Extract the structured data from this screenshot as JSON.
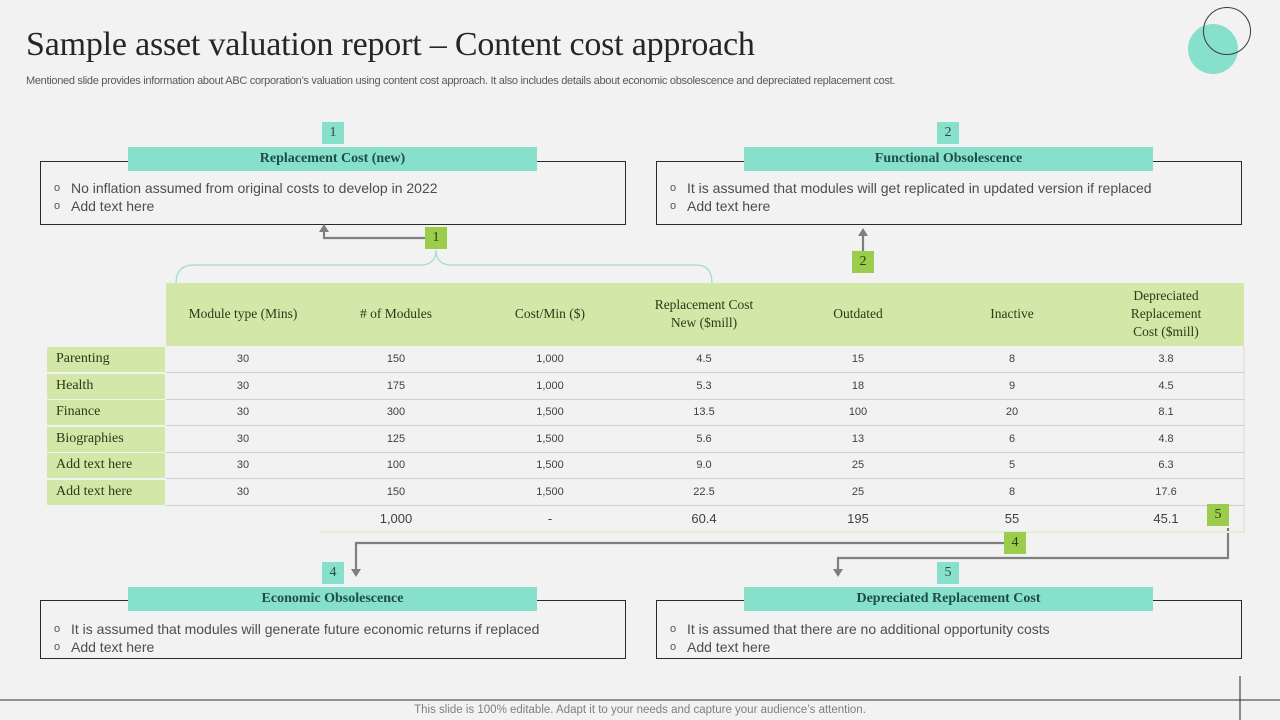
{
  "header": {
    "title": "Sample asset valuation report – Content cost approach",
    "subtitle": "Mentioned slide provides information about ABC corporation’s valuation using content cost approach. It also includes details about economic obsolescence and depreciated replacement cost."
  },
  "boxes": [
    {
      "number": "1",
      "title": "Replacement Cost (new)",
      "bullets": [
        "No inflation assumed from original costs to develop in 2022",
        "Add text here"
      ]
    },
    {
      "number": "2",
      "title": "Functional Obsolescence",
      "bullets": [
        "It is assumed that modules will get replicated in updated version if replaced",
        "Add text here"
      ]
    },
    {
      "number": "4",
      "title": "Economic Obsolescence",
      "bullets": [
        "It is assumed that modules will generate future economic returns if replaced",
        "Add text here"
      ]
    },
    {
      "number": "5",
      "title": "Depreciated Replacement Cost",
      "bullets": [
        "It is assumed that there are no additional opportunity costs",
        "Add text here"
      ]
    }
  ],
  "connectors": {
    "c1": "1",
    "c2": "2",
    "c4": "4",
    "c5": "5"
  },
  "table": {
    "columns": [
      "Module type (Mins)",
      "# of Modules",
      "Cost/Min ($)",
      "Replacement Cost New ($mill)",
      "Outdated",
      "Inactive",
      "Depreciated Replacement Cost ($mill)"
    ],
    "columns_lines": [
      [
        "Module type (Mins)"
      ],
      [
        "# of Modules"
      ],
      [
        "Cost/Min ($)"
      ],
      [
        "Replacement Cost",
        "New ($mill)"
      ],
      [
        "Outdated"
      ],
      [
        "Inactive"
      ],
      [
        "Depreciated",
        "Replacement",
        "Cost ($mill)"
      ]
    ],
    "rows": [
      {
        "label": "Parenting",
        "values": [
          "30",
          "150",
          "1,000",
          "4.5",
          "15",
          "8",
          "3.8"
        ]
      },
      {
        "label": "Health",
        "values": [
          "30",
          "175",
          "1,000",
          "5.3",
          "18",
          "9",
          "4.5"
        ]
      },
      {
        "label": "Finance",
        "values": [
          "30",
          "300",
          "1,500",
          "13.5",
          "100",
          "20",
          "8.1"
        ]
      },
      {
        "label": "Biographies",
        "values": [
          "30",
          "125",
          "1,500",
          "5.6",
          "13",
          "6",
          "4.8"
        ]
      },
      {
        "label": "Add text here",
        "values": [
          "30",
          "100",
          "1,500",
          "9.0",
          "25",
          "5",
          "6.3"
        ]
      },
      {
        "label": "Add text here",
        "values": [
          "30",
          "150",
          "1,500",
          "22.5",
          "25",
          "8",
          "17.6"
        ]
      }
    ],
    "totals": [
      "",
      "1,000",
      "-",
      "60.4",
      "195",
      "55",
      "45.1"
    ]
  },
  "footer": {
    "text": "This slide is 100% editable. Adapt it to your needs and capture your audience’s attention."
  },
  "colors": {
    "teal": "#86e0cc",
    "green": "#9ccc4c",
    "light_green": "#d2e7a8",
    "background": "#f2f2f2"
  }
}
